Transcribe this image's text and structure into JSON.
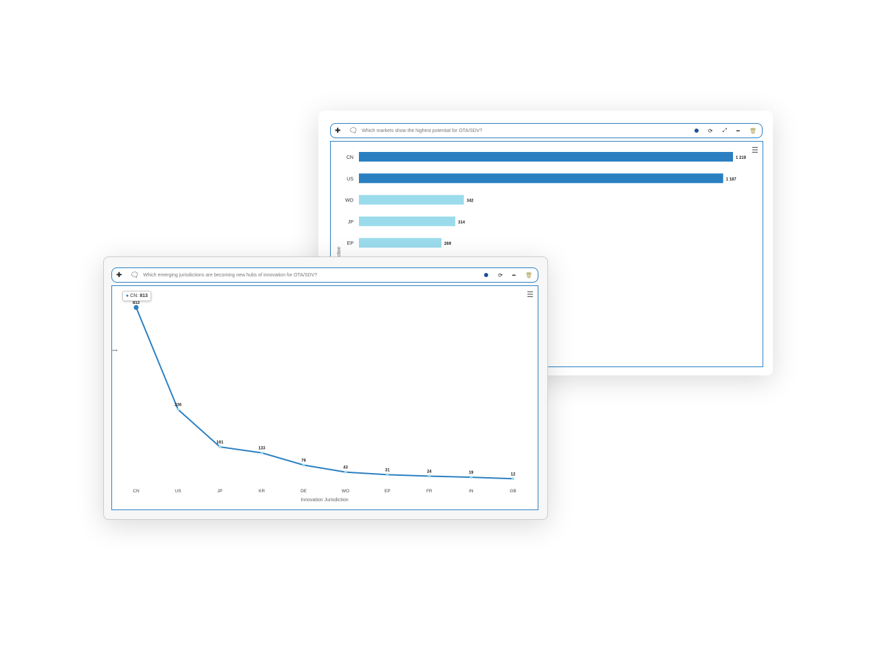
{
  "back_widget": {
    "question": "Which markets show the highest potential for OTA/SDV?",
    "icons": [
      "move-icon",
      "comment-icon",
      "status-dot-icon",
      "refresh-icon",
      "expand-icon",
      "minimize-icon",
      "delete-icon",
      "menu-icon"
    ],
    "chart_data": {
      "type": "bar",
      "orientation": "horizontal",
      "categories": [
        "CN",
        "US",
        "WO",
        "JP",
        "EP"
      ],
      "values": [
        1219,
        1187,
        342,
        314,
        269
      ],
      "value_labels": [
        "1 219",
        "1 187",
        "342",
        "314",
        "269"
      ],
      "ylabel": "Jurisdiction",
      "colors": [
        "#2a7fc1",
        "#2a7fc1",
        "#9bdcec",
        "#9bdcec",
        "#9bdcec"
      ]
    }
  },
  "front_widget": {
    "question": "Which emerging jurisdictions are becoming new hubs of innovation for OTA/SDV?",
    "tooltip": {
      "label": "CN:",
      "value": "813"
    },
    "icons": [
      "move-icon",
      "comment-icon",
      "status-dot-icon",
      "refresh-icon",
      "minimize-icon",
      "delete-icon",
      "menu-icon",
      "drag-handle-icon"
    ],
    "chart_data": {
      "type": "line",
      "categories": [
        "CN",
        "US",
        "JP",
        "KR",
        "DE",
        "WO",
        "EP",
        "FR",
        "IN",
        "GB"
      ],
      "values": [
        813,
        336,
        161,
        133,
        76,
        43,
        31,
        24,
        19,
        12
      ],
      "xlabel": "Innovation Jurisdiction",
      "line_color": "#2a7fc1"
    }
  }
}
